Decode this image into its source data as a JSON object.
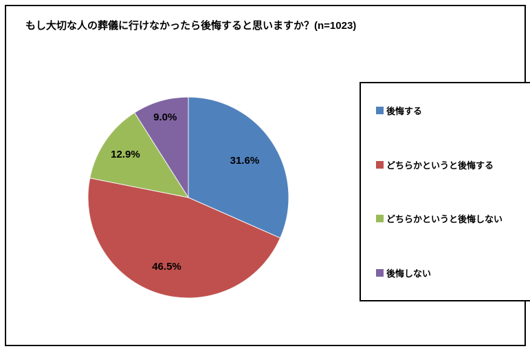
{
  "title": "もし大切な人の葬儀に行けなかったら後悔すると思いますか？(n=1023)",
  "chart_data": {
    "type": "pie",
    "title": "もし大切な人の葬儀に行けなかったら後悔すると思いますか？(n=1023)",
    "sample_size_text": "n=1023",
    "categories": [
      "後悔する",
      "どちらかというと後悔する",
      "どちらかというと後悔しない",
      "後悔しない"
    ],
    "values": [
      31.6,
      46.5,
      12.9,
      9.0
    ],
    "labels": [
      "31.6%",
      "46.5%",
      "12.9%",
      "9.0%"
    ],
    "colors": [
      "#4F81BD",
      "#C0504D",
      "#9BBB59",
      "#8064A2"
    ],
    "start_angle_deg": 0,
    "direction": "clockwise",
    "legend_position": "right",
    "data_label_color": "#000000"
  },
  "legend": {
    "items": [
      {
        "label": "後悔する",
        "color": "#4F81BD"
      },
      {
        "label": "どちらかというと後悔する",
        "color": "#C0504D"
      },
      {
        "label": "どちらかというと後悔しない",
        "color": "#9BBB59"
      },
      {
        "label": "後悔しない",
        "color": "#8064A2"
      }
    ]
  }
}
